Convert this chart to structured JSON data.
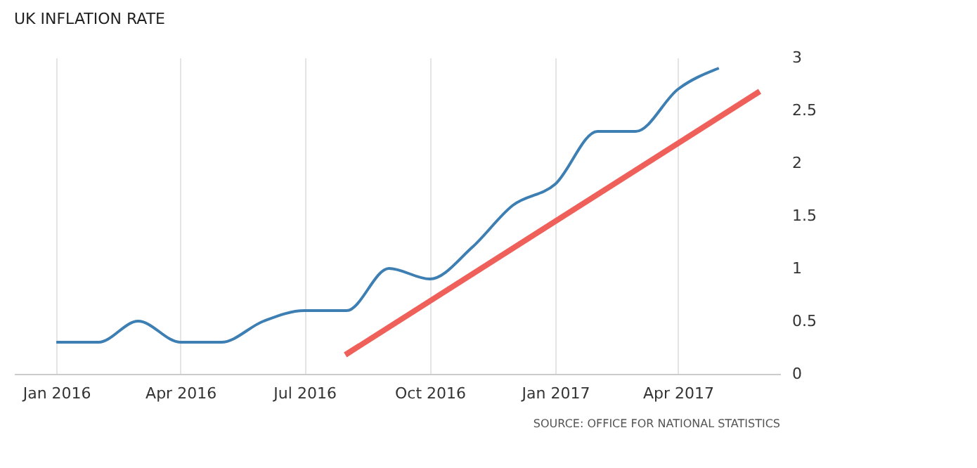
{
  "chart_data": {
    "type": "line",
    "title": "UK INFLATION RATE",
    "x": [
      "2016-01",
      "2016-02",
      "2016-03",
      "2016-04",
      "2016-05",
      "2016-06",
      "2016-07",
      "2016-08",
      "2016-09",
      "2016-10",
      "2016-11",
      "2016-12",
      "2017-01",
      "2017-02",
      "2017-03",
      "2017-04",
      "2017-05"
    ],
    "series": [
      {
        "color": "#3d7fb3",
        "values": [
          0.3,
          0.3,
          0.5,
          0.3,
          0.3,
          0.5,
          0.6,
          0.6,
          1.0,
          0.9,
          1.2,
          1.6,
          1.8,
          2.3,
          2.3,
          2.7,
          2.9
        ]
      },
      {
        "type": "line",
        "color": "#f0605a",
        "x": [
          "2016-07-31",
          "2017-05-31"
        ],
        "values": [
          0.18,
          2.68
        ]
      }
    ],
    "xlim": [
      "2015-12-01",
      "2017-06-15"
    ],
    "xticks": [
      {
        "value": "2016-01",
        "label": "Jan 2016"
      },
      {
        "value": "2016-04",
        "label": "Apr 2016"
      },
      {
        "value": "2016-07",
        "label": "Jul 2016"
      },
      {
        "value": "2016-10",
        "label": "Oct 2016"
      },
      {
        "value": "2017-01",
        "label": "Jan 2017"
      },
      {
        "value": "2017-04",
        "label": "Apr 2017"
      }
    ],
    "ylim": [
      0,
      3
    ],
    "yticks": [
      0,
      0.5,
      1,
      1.5,
      2,
      2.5,
      3
    ],
    "grid": "x",
    "marker": "none",
    "line_style": "solid",
    "annotations": [
      "SOURCE: OFFICE FOR NATIONAL STATISTICS"
    ]
  }
}
